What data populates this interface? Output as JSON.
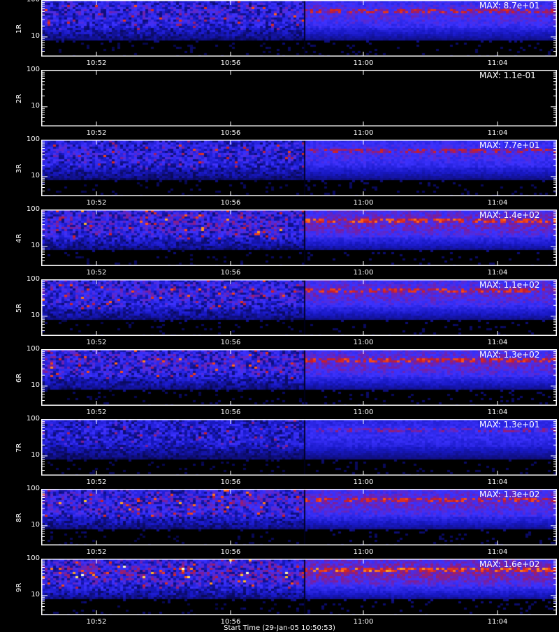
{
  "chart_data": [
    {
      "type": "heatmap",
      "name": "1R",
      "max_label": "MAX: 8.7e+01",
      "y_ticks": [
        "100",
        "10"
      ],
      "x_ticks": [
        "10:52",
        "10:56",
        "11:00",
        "11:04"
      ],
      "intensity": 0.85
    },
    {
      "type": "heatmap",
      "name": "2R",
      "max_label": "MAX: 1.1e-01",
      "y_ticks": [
        "100",
        "10"
      ],
      "x_ticks": [
        "10:52",
        "10:56",
        "11:00",
        "11:04"
      ],
      "intensity": 0.0
    },
    {
      "type": "heatmap",
      "name": "3R",
      "max_label": "MAX: 7.7e+01",
      "y_ticks": [
        "100",
        "10"
      ],
      "x_ticks": [
        "10:52",
        "10:56",
        "11:00",
        "11:04"
      ],
      "intensity": 0.8
    },
    {
      "type": "heatmap",
      "name": "4R",
      "max_label": "MAX: 1.4e+02",
      "y_ticks": [
        "100",
        "10"
      ],
      "x_ticks": [
        "10:52",
        "10:56",
        "11:00",
        "11:04"
      ],
      "intensity": 0.95
    },
    {
      "type": "heatmap",
      "name": "5R",
      "max_label": "MAX: 1.1e+02",
      "y_ticks": [
        "100",
        "10"
      ],
      "x_ticks": [
        "10:52",
        "10:56",
        "11:00",
        "11:04"
      ],
      "intensity": 0.9
    },
    {
      "type": "heatmap",
      "name": "6R",
      "max_label": "MAX: 1.3e+02",
      "y_ticks": [
        "100",
        "10"
      ],
      "x_ticks": [
        "10:52",
        "10:56",
        "11:00",
        "11:04"
      ],
      "intensity": 0.92
    },
    {
      "type": "heatmap",
      "name": "7R",
      "max_label": "MAX: 1.3e+01",
      "y_ticks": [
        "100",
        "10"
      ],
      "x_ticks": [
        "10:52",
        "10:56",
        "11:00",
        "11:04"
      ],
      "intensity": 0.7
    },
    {
      "type": "heatmap",
      "name": "8R",
      "max_label": "MAX: 1.3e+02",
      "y_ticks": [
        "100",
        "10"
      ],
      "x_ticks": [
        "10:52",
        "10:56",
        "11:00",
        "11:04"
      ],
      "intensity": 0.92
    },
    {
      "type": "heatmap",
      "name": "9R",
      "max_label": "MAX: 1.6e+02",
      "y_ticks": [
        "100",
        "10"
      ],
      "x_ticks": [
        "10:52",
        "10:56",
        "11:00",
        "11:04"
      ],
      "intensity": 1.0
    }
  ],
  "x_axis": {
    "range": [
      "10:49",
      "11:07"
    ],
    "y_scale": "log",
    "y_range": [
      3,
      100
    ]
  },
  "xtitle": "Start Time (29-Jan-05 10:50:53)",
  "colors": {
    "background": "#000000",
    "axis": "#ffffff",
    "low": "#1a1aff",
    "mid": "#cc2222",
    "high": "#ffe23a"
  }
}
